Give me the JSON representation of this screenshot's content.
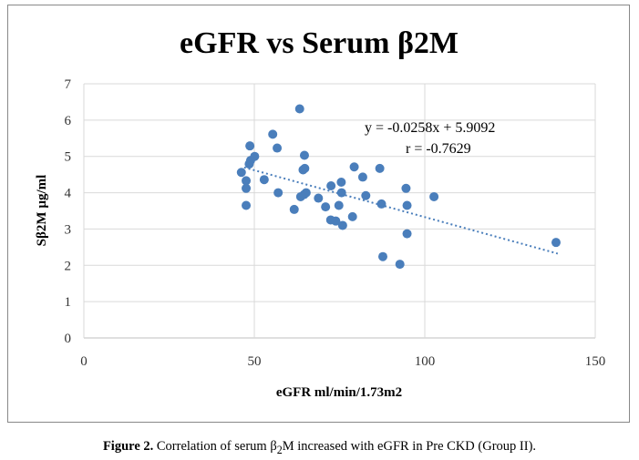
{
  "chart_data": {
    "type": "scatter",
    "title": "eGFR vs Serum β2M",
    "xlabel": "eGFR  ml/min/1.73m2",
    "ylabel": "Sβ2M  µg/ml",
    "xlim": [
      0,
      150
    ],
    "ylim": [
      0,
      7
    ],
    "xticks": [
      0,
      50,
      100,
      150
    ],
    "yticks": [
      0,
      1,
      2,
      3,
      4,
      5,
      6,
      7
    ],
    "grid": true,
    "point_color": "#4a7ebb",
    "points": [
      [
        63.3,
        6.31
      ],
      [
        55.4,
        5.61
      ],
      [
        48.7,
        5.29
      ],
      [
        56.7,
        5.23
      ],
      [
        50.1,
        5.0
      ],
      [
        48.9,
        4.89
      ],
      [
        48.5,
        4.79
      ],
      [
        64.7,
        5.03
      ],
      [
        64.3,
        4.63
      ],
      [
        64.8,
        4.67
      ],
      [
        46.2,
        4.56
      ],
      [
        47.6,
        4.33
      ],
      [
        47.6,
        4.12
      ],
      [
        47.6,
        3.65
      ],
      [
        52.9,
        4.36
      ],
      [
        57.0,
        4.0
      ],
      [
        61.7,
        3.54
      ],
      [
        63.6,
        3.89
      ],
      [
        65.2,
        4.0
      ],
      [
        64.6,
        3.95
      ],
      [
        68.8,
        3.85
      ],
      [
        70.9,
        3.61
      ],
      [
        72.5,
        4.19
      ],
      [
        75.5,
        4.29
      ],
      [
        75.6,
        4.0
      ],
      [
        74.8,
        3.65
      ],
      [
        72.4,
        3.25
      ],
      [
        73.9,
        3.22
      ],
      [
        75.9,
        3.1
      ],
      [
        78.8,
        3.34
      ],
      [
        79.3,
        4.71
      ],
      [
        81.8,
        4.43
      ],
      [
        82.7,
        3.92
      ],
      [
        86.8,
        4.67
      ],
      [
        87.3,
        3.69
      ],
      [
        87.7,
        2.24
      ],
      [
        92.7,
        2.03
      ],
      [
        94.5,
        4.12
      ],
      [
        94.8,
        3.65
      ],
      [
        94.8,
        2.87
      ],
      [
        102.7,
        3.89
      ],
      [
        138.5,
        2.63
      ]
    ],
    "trendline": {
      "slope": -0.0258,
      "intercept": 5.9092,
      "x_range": [
        47,
        139
      ],
      "style": "dotted"
    },
    "annotations": [
      "y = -0.0258x   + 5.9092",
      "r = -0.7629"
    ]
  },
  "caption": {
    "label": "Figure 2.",
    "text_before": " Correlation of serum β",
    "subscript": "2",
    "text_after": "M increased with eGFR in Pre CKD (Group II)."
  }
}
